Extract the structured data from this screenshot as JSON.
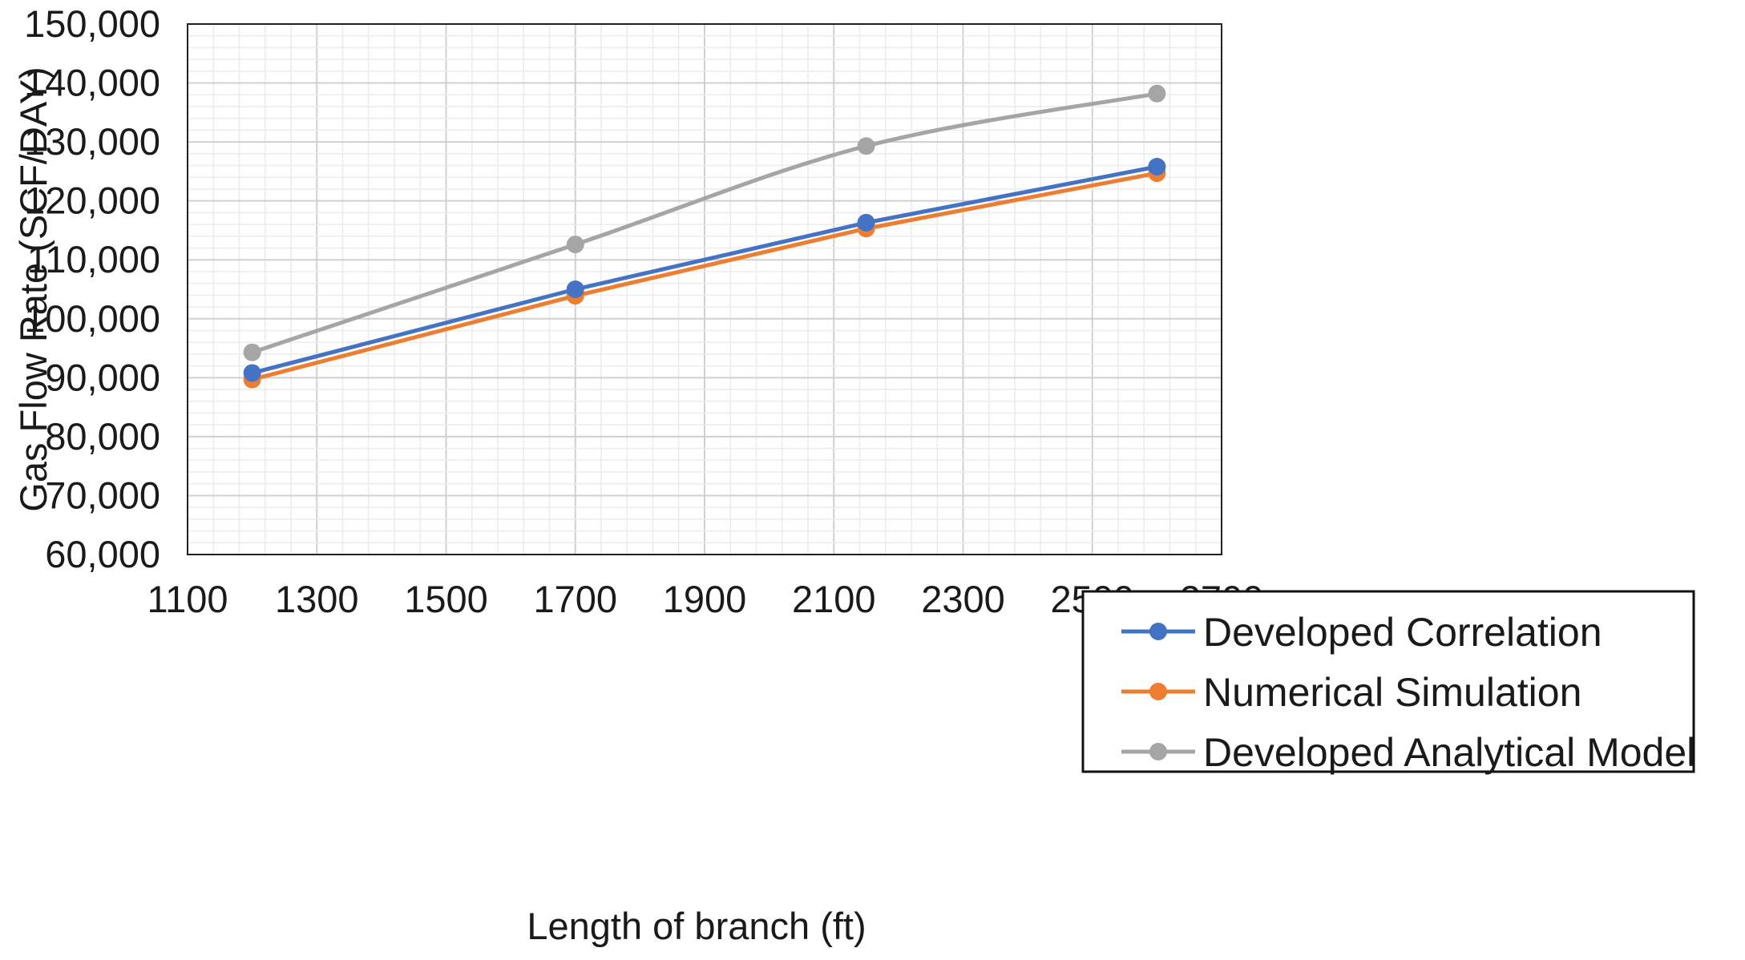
{
  "chart_data": {
    "type": "line",
    "title": "",
    "xlabel": "Length of branch  (ft)",
    "ylabel": "Gas Flow Rate (SCF/DAY)",
    "xlim": [
      1100,
      2700
    ],
    "ylim": [
      60000,
      150000
    ],
    "x_ticks": [
      1100,
      1300,
      1500,
      1700,
      1900,
      2100,
      2300,
      2500,
      2700
    ],
    "x_tick_labels": [
      "1100",
      "1300",
      "1500",
      "1700",
      "1900",
      "2100",
      "2300",
      "2500",
      "2700"
    ],
    "y_ticks": [
      60000,
      70000,
      80000,
      90000,
      100000,
      110000,
      120000,
      130000,
      140000,
      150000
    ],
    "y_tick_labels": [
      "60,000",
      "70,000",
      "80,000",
      "90,000",
      "100,000",
      "110,000",
      "120,000",
      "130,000",
      "140,000",
      "150,000"
    ],
    "grid": "major and minor",
    "legend_position": "bottom-right",
    "x": [
      1200,
      1700,
      2150,
      2600
    ],
    "series": [
      {
        "name": "Developed Correlation",
        "color": "#4472C4",
        "values": [
          90800,
          105000,
          116300,
          125800
        ]
      },
      {
        "name": "Numerical Simulation",
        "color": "#ED7D31",
        "values": [
          89700,
          103900,
          115300,
          124700
        ]
      },
      {
        "name": "Developed Analytical Model",
        "color": "#A5A5A5",
        "values": [
          94300,
          112600,
          129300,
          138200
        ]
      }
    ]
  }
}
